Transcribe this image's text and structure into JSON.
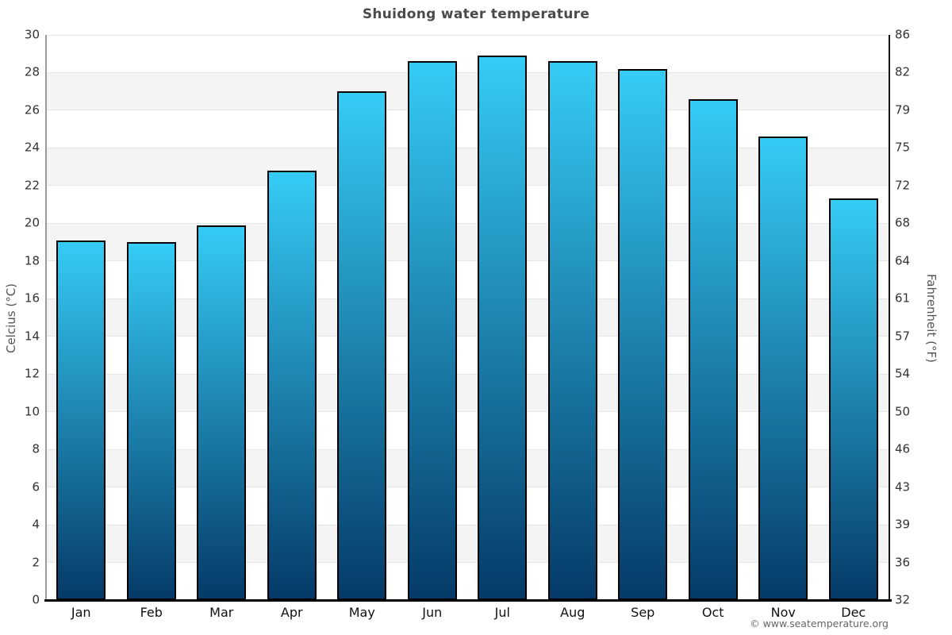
{
  "chart_data": {
    "type": "bar",
    "title": "Shuidong water temperature",
    "categories": [
      "Jan",
      "Feb",
      "Mar",
      "Apr",
      "May",
      "Jun",
      "Jul",
      "Aug",
      "Sep",
      "Oct",
      "Nov",
      "Dec"
    ],
    "values": [
      19.1,
      19.0,
      19.9,
      22.8,
      27.0,
      28.6,
      28.9,
      28.6,
      28.2,
      26.6,
      24.6,
      21.3
    ],
    "series_name": "Water temperature (°C)",
    "ylabel_left": "Celcius (°C)",
    "ylabel_right": "Fahrenheit (°F)",
    "yticks_celsius": [
      30,
      28,
      26,
      24,
      22,
      20,
      18,
      16,
      14,
      12,
      10,
      8,
      6,
      4,
      2,
      0
    ],
    "yticks_fahrenheit": [
      86,
      82,
      79,
      75,
      72,
      68,
      64,
      61,
      57,
      54,
      50,
      46,
      43,
      39,
      36,
      32
    ],
    "ylim": [
      0,
      30
    ],
    "grid": true,
    "legend": "none",
    "colors": {
      "bar_gradient_top": "#35ccf5",
      "bar_gradient_bottom": "#053a68",
      "bar_border": "#000000",
      "band": "#f4f4f4",
      "gridline": "#e6e6e6",
      "title_text": "#4a4a4a",
      "tick_text": "#333333",
      "axis_title_text": "#555555"
    }
  },
  "footer": {
    "copyright": "© www.seatemperature.org"
  }
}
